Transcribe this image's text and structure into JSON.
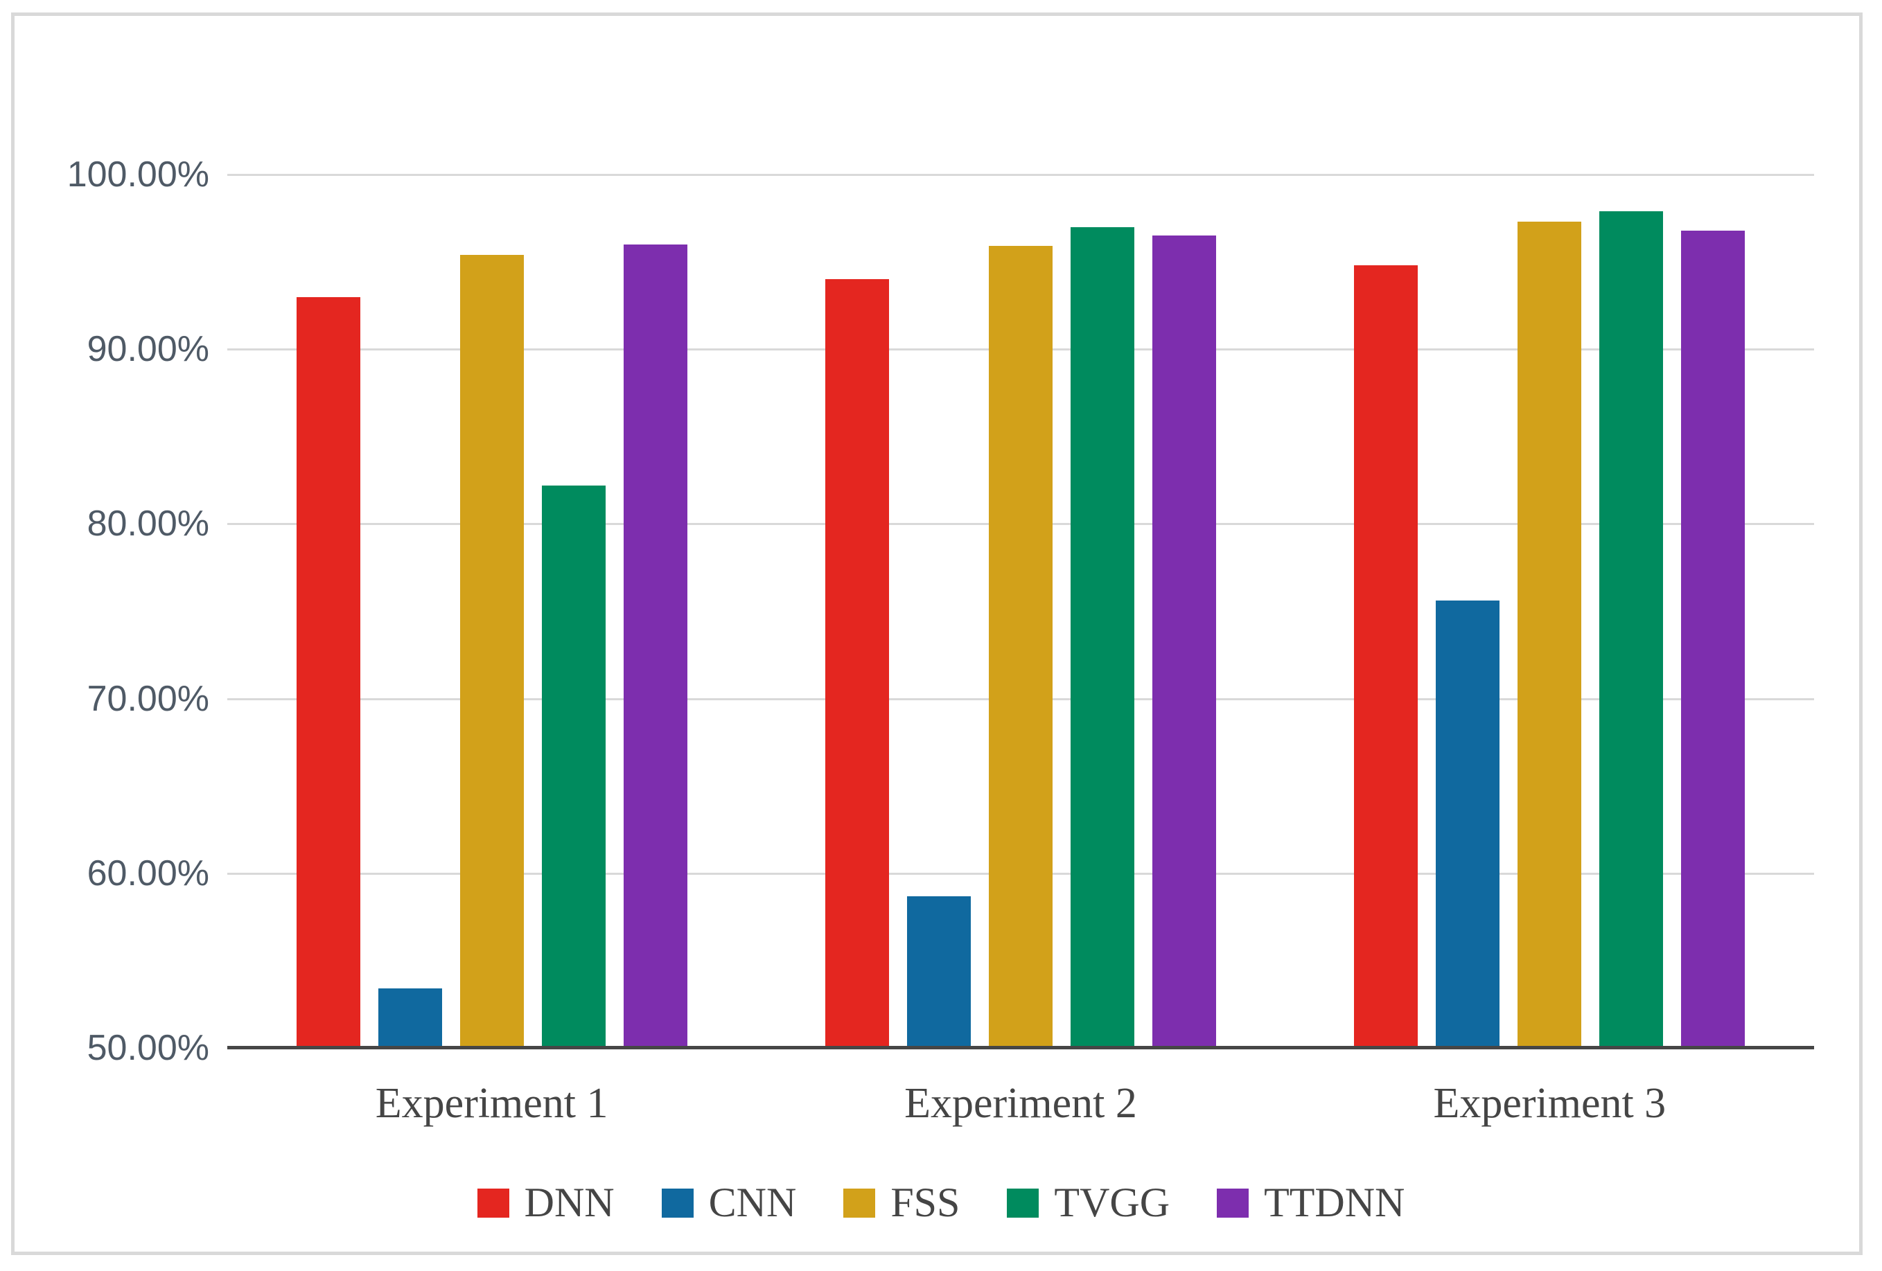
{
  "chart_data": {
    "type": "bar",
    "categories": [
      "Experiment 1",
      "Experiment 2",
      "Experiment 3"
    ],
    "series": [
      {
        "name": "DNN",
        "color": "#e42620",
        "values": [
          93.0,
          94.0,
          94.8
        ]
      },
      {
        "name": "CNN",
        "color": "#10699f",
        "values": [
          53.4,
          58.7,
          75.6
        ]
      },
      {
        "name": "FSS",
        "color": "#d2a11a",
        "values": [
          95.4,
          95.9,
          97.3
        ]
      },
      {
        "name": "TVGG",
        "color": "#008b5e",
        "values": [
          82.2,
          97.0,
          97.9
        ]
      },
      {
        "name": "TTDNN",
        "color": "#7d2eae",
        "values": [
          96.0,
          96.5,
          96.8
        ]
      }
    ],
    "title": "",
    "xlabel": "",
    "ylabel": "",
    "ylim": [
      50,
      100
    ],
    "ytick_step": 10,
    "yticks": [
      50,
      60,
      70,
      80,
      90,
      100
    ],
    "ytick_labels": [
      "50.00%",
      "60.00%",
      "70.00%",
      "80.00%",
      "90.00%",
      "100.00%"
    ],
    "grid": true,
    "legend_position": "bottom"
  },
  "colors": {
    "background": "#ffffff",
    "frame_border": "#d9d9d9",
    "gridline": "#d9d9d9",
    "axis_line": "#464646",
    "tick_text": "#4f5a66",
    "label_text": "#454545"
  }
}
